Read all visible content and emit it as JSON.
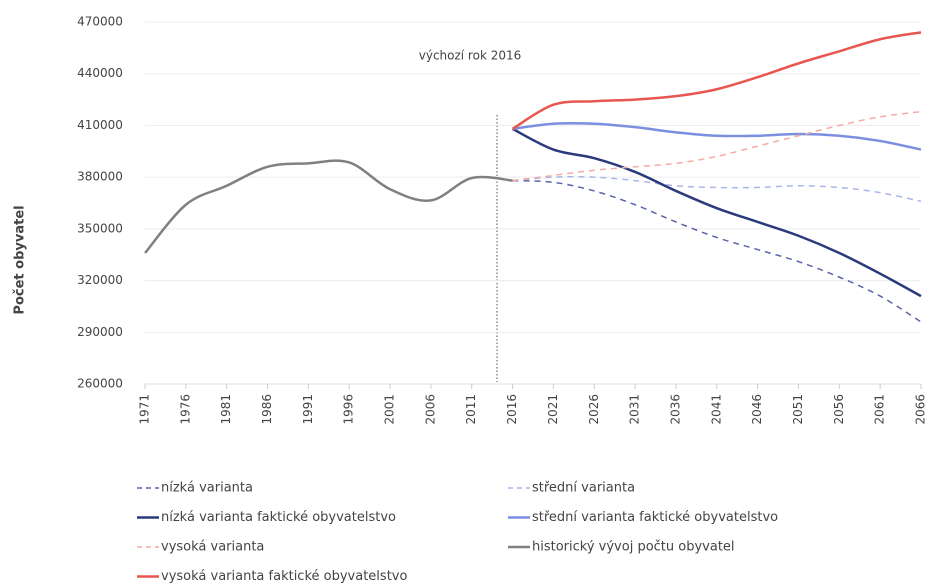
{
  "chart_data": {
    "type": "line",
    "y_label": "Počet obyvatel",
    "annotation": "výchozí rok 2016",
    "categories": [
      "1971",
      "1976",
      "1981",
      "1986",
      "1991",
      "1996",
      "2001",
      "2006",
      "2011",
      "2016",
      "2021",
      "2026",
      "2031",
      "2036",
      "2041",
      "2046",
      "2051",
      "2056",
      "2061",
      "2066"
    ],
    "ylim": [
      260000,
      470000
    ],
    "yticks": [
      260000,
      290000,
      320000,
      350000,
      380000,
      410000,
      440000,
      470000
    ],
    "grid": true,
    "series": [
      {
        "name": "nízká varianta",
        "color": "#5a64a8",
        "dashed": true,
        "values": [
          null,
          null,
          null,
          null,
          null,
          null,
          null,
          null,
          null,
          378000,
          377000,
          372000,
          364000,
          354000,
          345000,
          338000,
          331000,
          322000,
          311000,
          296000
        ]
      },
      {
        "name": "střední varianta",
        "color": "#a9b4ea",
        "dashed": true,
        "values": [
          null,
          null,
          null,
          null,
          null,
          null,
          null,
          null,
          null,
          378000,
          380000,
          380000,
          378000,
          375000,
          374000,
          374000,
          375000,
          374000,
          371000,
          366000
        ]
      },
      {
        "name": "nízká varianta faktické obyvatelstvo",
        "color": "#2b3a7c",
        "dashed": false,
        "values": [
          null,
          null,
          null,
          null,
          null,
          null,
          null,
          null,
          null,
          408000,
          396000,
          391000,
          383000,
          372000,
          362000,
          354000,
          346000,
          336000,
          324000,
          311000
        ]
      },
      {
        "name": "střední varianta faktické obyvatelstvo",
        "color": "#7b8fe0",
        "dashed": false,
        "values": [
          null,
          null,
          null,
          null,
          null,
          null,
          null,
          null,
          null,
          408000,
          411000,
          411000,
          409000,
          406000,
          404000,
          404000,
          405000,
          404000,
          401000,
          396000
        ]
      },
      {
        "name": "vysoká varianta",
        "color": "#f4aaa3",
        "dashed": true,
        "values": [
          null,
          null,
          null,
          null,
          null,
          null,
          null,
          null,
          null,
          378000,
          381000,
          384000,
          386000,
          388000,
          392000,
          398000,
          404000,
          410000,
          415000,
          418000
        ]
      },
      {
        "name": "historický vývoj počtu obyvatel",
        "color": "#808080",
        "dashed": false,
        "values": [
          336000,
          364000,
          375000,
          386000,
          388000,
          388500,
          373000,
          366500,
          379500,
          378000,
          null,
          null,
          null,
          null,
          null,
          null,
          null,
          null,
          null,
          null
        ]
      },
      {
        "name": "vysoká varianta faktické obyvatelstvo",
        "color": "#e8574f",
        "dashed": false,
        "values": [
          null,
          null,
          null,
          null,
          null,
          null,
          null,
          null,
          null,
          408000,
          422000,
          424000,
          425000,
          427000,
          431000,
          438000,
          446000,
          453000,
          460000,
          464000
        ]
      }
    ]
  }
}
